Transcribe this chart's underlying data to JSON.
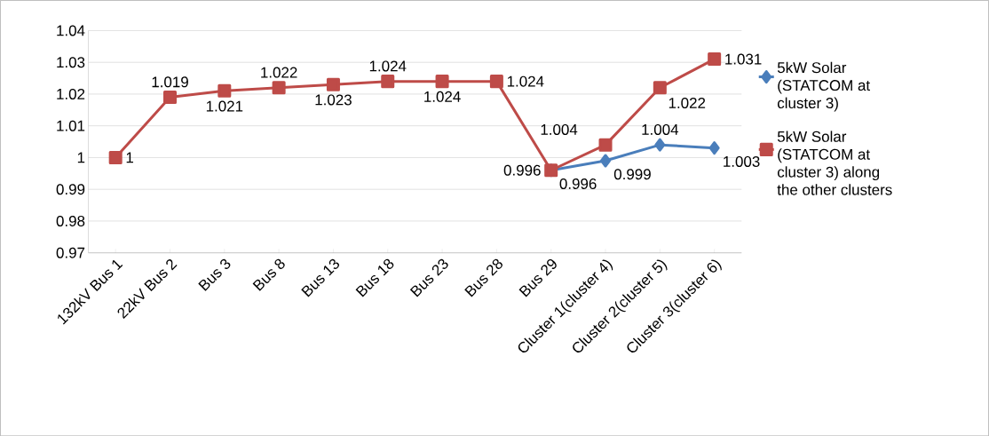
{
  "chart_data": {
    "type": "line",
    "categories": [
      "132kV Bus 1",
      "22kV Bus 2",
      "Bus 3",
      "Bus 8",
      "Bus 13",
      "Bus 18",
      "Bus 23",
      "Bus 28",
      "Bus 29",
      "Cluster 1(cluster 4)",
      "Cluster 2(cluster 5)",
      "Cluster 3(cluster 6)"
    ],
    "series": [
      {
        "name": "5kW Solar (STATCOM at cluster 3)",
        "color": "#4a7ebb",
        "marker": "diamond",
        "values": [
          null,
          null,
          null,
          null,
          null,
          null,
          null,
          null,
          0.996,
          0.999,
          1.004,
          1.003
        ],
        "value_labels": [
          null,
          null,
          null,
          null,
          null,
          null,
          null,
          null,
          "0.996",
          "0.999",
          "1.004",
          "1.003"
        ]
      },
      {
        "name": "5kW Solar (STATCOM at cluster 3) along the other clusters",
        "color": "#be4b48",
        "marker": "square",
        "values": [
          1,
          1.019,
          1.021,
          1.022,
          1.023,
          1.024,
          1.024,
          1.024,
          0.996,
          1.004,
          1.022,
          1.031
        ],
        "value_labels": [
          "1",
          "1.019",
          "1.021",
          "1.022",
          "1.023",
          "1.024",
          "1.024",
          "1.024",
          "0.996",
          "1.004",
          "1.022",
          "1.031"
        ]
      }
    ],
    "ylim": [
      0.97,
      1.04
    ],
    "yticks": [
      {
        "value": 0.97,
        "label": "0.97"
      },
      {
        "value": 0.98,
        "label": "0.98"
      },
      {
        "value": 0.99,
        "label": "0.99"
      },
      {
        "value": 1,
        "label": "1"
      },
      {
        "value": 1.01,
        "label": "1.01"
      },
      {
        "value": 1.02,
        "label": "1.02"
      },
      {
        "value": 1.03,
        "label": "1.03"
      },
      {
        "value": 1.04,
        "label": "1.04"
      }
    ],
    "grid": "y",
    "legend": "right",
    "line_style": "solid"
  }
}
